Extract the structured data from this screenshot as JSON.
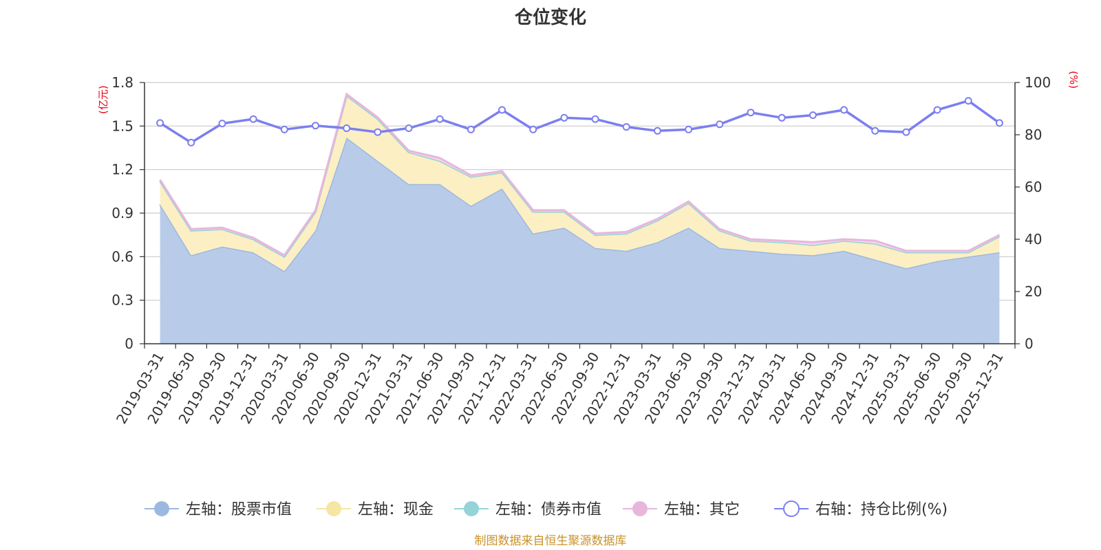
{
  "chart_data": {
    "type": "area",
    "title": "仓位变化",
    "left_unit": "(亿元)",
    "right_unit": "(%)",
    "source": "制图数据来自恒生聚源数据库",
    "categories": [
      "2019-03-31",
      "2019-06-30",
      "2019-09-30",
      "2019-12-31",
      "2020-03-31",
      "2020-06-30",
      "2020-09-30",
      "2020-12-31",
      "2021-03-31",
      "2021-06-30",
      "2021-09-30",
      "2021-12-31",
      "2022-03-31",
      "2022-06-30",
      "2022-09-30",
      "2022-12-31",
      "2023-03-31",
      "2023-06-30",
      "2023-09-30",
      "2023-12-31",
      "2024-03-31",
      "2024-06-30",
      "2024-09-30",
      "2024-12-31",
      "2025-03-31",
      "2025-06-30",
      "2025-09-30",
      "2025-12-31"
    ],
    "y_left": {
      "min": 0,
      "max": 1.8,
      "ticks": [
        "0",
        "0.3",
        "0.6",
        "0.9",
        "1.2",
        "1.5",
        "1.8"
      ]
    },
    "y_right": {
      "min": 0,
      "max": 100,
      "ticks": [
        "0",
        "20",
        "40",
        "60",
        "80",
        "100"
      ]
    },
    "grid": true,
    "legend_position": "bottom",
    "series": [
      {
        "name": "左轴：股票市值",
        "axis": "left",
        "stack": true,
        "color": "#9db8e0",
        "fill": "#b8cce9",
        "values": [
          0.96,
          0.61,
          0.67,
          0.63,
          0.5,
          0.78,
          1.42,
          1.26,
          1.1,
          1.1,
          0.95,
          1.07,
          0.76,
          0.8,
          0.66,
          0.64,
          0.7,
          0.8,
          0.66,
          0.64,
          0.62,
          0.61,
          0.64,
          0.58,
          0.52,
          0.57,
          0.6,
          0.63
        ]
      },
      {
        "name": "左轴：现金",
        "axis": "left",
        "stack": true,
        "color": "#f5e6a3",
        "fill": "#fbefc3",
        "values": [
          0.16,
          0.17,
          0.12,
          0.09,
          0.1,
          0.13,
          0.29,
          0.29,
          0.22,
          0.16,
          0.2,
          0.11,
          0.15,
          0.11,
          0.09,
          0.12,
          0.15,
          0.17,
          0.12,
          0.07,
          0.08,
          0.07,
          0.07,
          0.11,
          0.11,
          0.06,
          0.03,
          0.11
        ]
      },
      {
        "name": "左轴：债券市值",
        "axis": "left",
        "stack": true,
        "color": "#95d3d8",
        "fill": "#bfe6e9",
        "values": [
          0,
          0,
          0,
          0,
          0,
          0,
          0,
          0,
          0,
          0,
          0,
          0,
          0,
          0,
          0,
          0,
          0,
          0,
          0,
          0,
          0,
          0,
          0,
          0,
          0,
          0,
          0,
          0
        ]
      },
      {
        "name": "左轴：其它",
        "axis": "left",
        "stack": true,
        "color": "#e8b6dc",
        "fill": "#f3d6ec",
        "values": [
          0.01,
          0.01,
          0.01,
          0.01,
          0.01,
          0.01,
          0.01,
          0.01,
          0.01,
          0.02,
          0.01,
          0.01,
          0.01,
          0.01,
          0.01,
          0.01,
          0.01,
          0.01,
          0.01,
          0.01,
          0.01,
          0.02,
          0.01,
          0.02,
          0.01,
          0.01,
          0.01,
          0.01
        ]
      },
      {
        "name": "右轴：持仓比例(%)",
        "axis": "right",
        "stack": false,
        "color": "#7b7ff0",
        "values": [
          84.5,
          77.0,
          84.3,
          86.0,
          82.0,
          83.5,
          82.5,
          81.0,
          82.5,
          86.0,
          82.0,
          89.5,
          82.0,
          86.5,
          86.0,
          83.0,
          81.5,
          82.0,
          84.0,
          88.5,
          86.5,
          87.5,
          89.5,
          81.5,
          81.0,
          89.5,
          93.0,
          84.5
        ]
      }
    ]
  }
}
